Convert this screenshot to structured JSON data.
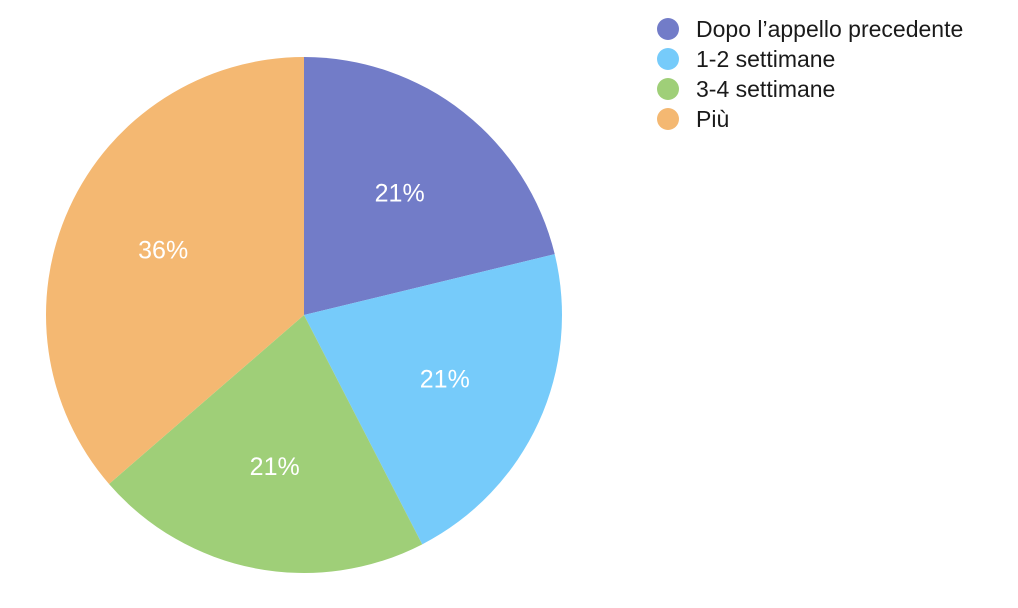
{
  "chart_data": {
    "type": "pie",
    "slices": [
      {
        "label": "Dopo l’appello precedente",
        "value": 21,
        "display": "21%",
        "color": "#727cc8"
      },
      {
        "label": "1-2 settimane",
        "value": 21,
        "display": "21%",
        "color": "#76cbfa"
      },
      {
        "label": "3-4 settimane",
        "value": 21,
        "display": "21%",
        "color": "#9fcf78"
      },
      {
        "label": "Più",
        "value": 36,
        "display": "36%",
        "color": "#f4b872"
      }
    ],
    "legend_position": "top-right",
    "start_angle": "top",
    "direction": "clockwise"
  }
}
